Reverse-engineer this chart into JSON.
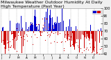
{
  "title": "Milwaukee Weather Outdoor Humidity At Daily High Temperature (Past Year)",
  "background_color": "#f0f0f0",
  "plot_bg": "#ffffff",
  "bar_color_above": "#0000cc",
  "bar_color_below": "#cc0000",
  "dot_color": "#cc0000",
  "dot_color2": "#0000cc",
  "ylim": [
    40,
    100
  ],
  "yticks": [
    40,
    50,
    60,
    70,
    80,
    90,
    100
  ],
  "n_days": 365,
  "baseline": 70,
  "grid_color": "#aaaaaa",
  "legend_blue_label": "",
  "legend_red_label": "",
  "title_fontsize": 4.5,
  "tick_fontsize": 3.5
}
